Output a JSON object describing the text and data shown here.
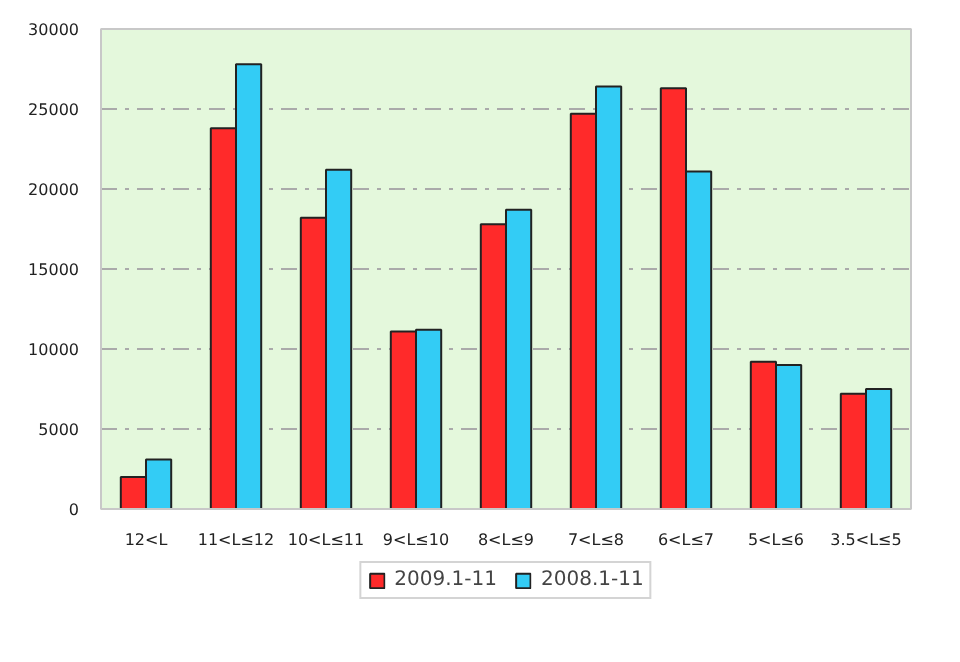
{
  "chart_data": {
    "type": "bar",
    "categories": [
      "12<L",
      "11<L≤12",
      "10<L≤11",
      "9<L≤10",
      "8<L≤9",
      "7<L≤8",
      "6<L≤7",
      "5<L≤6",
      "3.5<L≤5"
    ],
    "series": [
      {
        "name": "2009.1-11",
        "color": "#ff2a2a",
        "values": [
          2000,
          23800,
          18200,
          11100,
          17800,
          24700,
          26300,
          9200,
          7200
        ]
      },
      {
        "name": "2008.1-11",
        "color": "#33ccf5",
        "values": [
          3100,
          27800,
          21200,
          11200,
          18700,
          26400,
          21100,
          9000,
          7500
        ]
      }
    ],
    "ylim": [
      0,
      30000
    ],
    "yticks": [
      0,
      5000,
      10000,
      15000,
      20000,
      25000,
      30000
    ],
    "grid": "y",
    "legend": "bottom"
  }
}
